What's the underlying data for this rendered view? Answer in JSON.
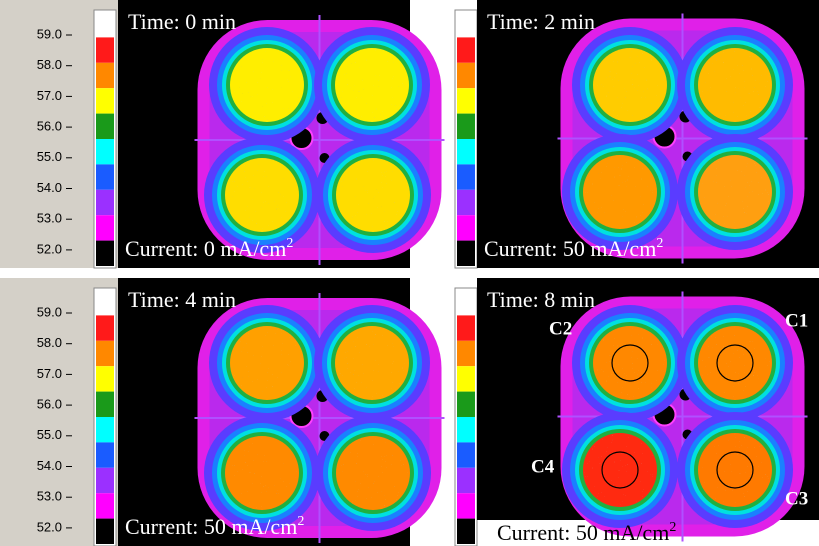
{
  "scale_labels": [
    "59.0",
    "58.0",
    "57.0",
    "56.0",
    "55.0",
    "54.0",
    "53.0",
    "52.0"
  ],
  "panels": [
    {
      "time": "Time: 0 min",
      "current": "Current: 0 mA/cm",
      "current_sup": "2"
    },
    {
      "time": "Time: 2 min",
      "current": "Current: 50 mA/cm",
      "current_sup": "2"
    },
    {
      "time": "Time: 4 min",
      "current": "Current: 50 mA/cm",
      "current_sup": "2"
    },
    {
      "time": "Time: 8 min",
      "current": "Current: 50 mA/cm",
      "current_sup": "2",
      "cells": [
        "C1",
        "C2",
        "C3",
        "C4"
      ]
    }
  ]
}
